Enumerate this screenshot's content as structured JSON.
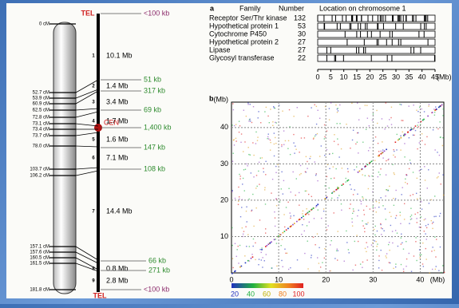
{
  "genetic_map": {
    "markers": [
      "0 cM",
      "52.7 cM",
      "53.9 cM",
      "60.9 cM",
      "62.5 cM",
      "72.8 cM",
      "73.1 cM",
      "73.4 cM",
      "73.7 cM",
      "78.0 cM",
      "103.7 cM",
      "106.2 cM",
      "157.1 cM",
      "157.6 cM",
      "160.5 cM",
      "161.5 cM",
      "181.8 cM"
    ]
  },
  "physical_map": {
    "tel_top": "TEL",
    "tel_bottom": "TEL",
    "centromere": "CEN",
    "segments": [
      {
        "id": "1",
        "size": "10.1 Mb"
      },
      {
        "id": "2",
        "size": "1.4 Mb"
      },
      {
        "id": "3",
        "size": "3.4 Mb"
      },
      {
        "id": "4",
        "size": "1.7 Mb"
      },
      {
        "id": "5",
        "size": "1.6 Mb"
      },
      {
        "id": "6",
        "size": "7.1 Mb"
      },
      {
        "id": "7",
        "size": "14.4 Mb"
      },
      {
        "id": "8",
        "size": "0.8 Mb"
      },
      {
        "id": "9",
        "size": "2.8 Mb"
      }
    ],
    "gaps": [
      "<100 kb",
      "51 kb",
      "317 kb",
      "69 kb",
      "1,400 kb",
      "147 kb",
      "108 kb",
      "66 kb",
      "271 kb",
      "<100 kb"
    ]
  },
  "panel_a": {
    "label": "a",
    "headers": [
      "Family",
      "Number",
      "Location on chromosome 1"
    ],
    "rows": [
      [
        "Receptor Ser/Thr kinase",
        "132"
      ],
      [
        "Hypothetical protein 1",
        "53"
      ],
      [
        "Cytochrome P450",
        "30"
      ],
      [
        "Hypothetical protein 2",
        "27"
      ],
      [
        "Lipase",
        "27"
      ],
      [
        "Glycosyl transferase",
        "22"
      ]
    ],
    "xlim": [
      0,
      45
    ],
    "xticks": [
      0,
      5,
      10,
      15,
      20,
      25,
      30,
      35,
      40,
      45
    ],
    "unit": "(Mb)"
  },
  "panel_b": {
    "label": "b",
    "xlim": [
      0,
      45
    ],
    "ylim": [
      0,
      47
    ],
    "xticks": [
      0,
      10,
      20,
      30,
      40
    ],
    "yticks": [
      10,
      20,
      30,
      40
    ],
    "x_unit": "(Mb)",
    "y_unit": "(Mb)",
    "colorbar_ticks": [
      20,
      40,
      60,
      80,
      100
    ]
  }
}
